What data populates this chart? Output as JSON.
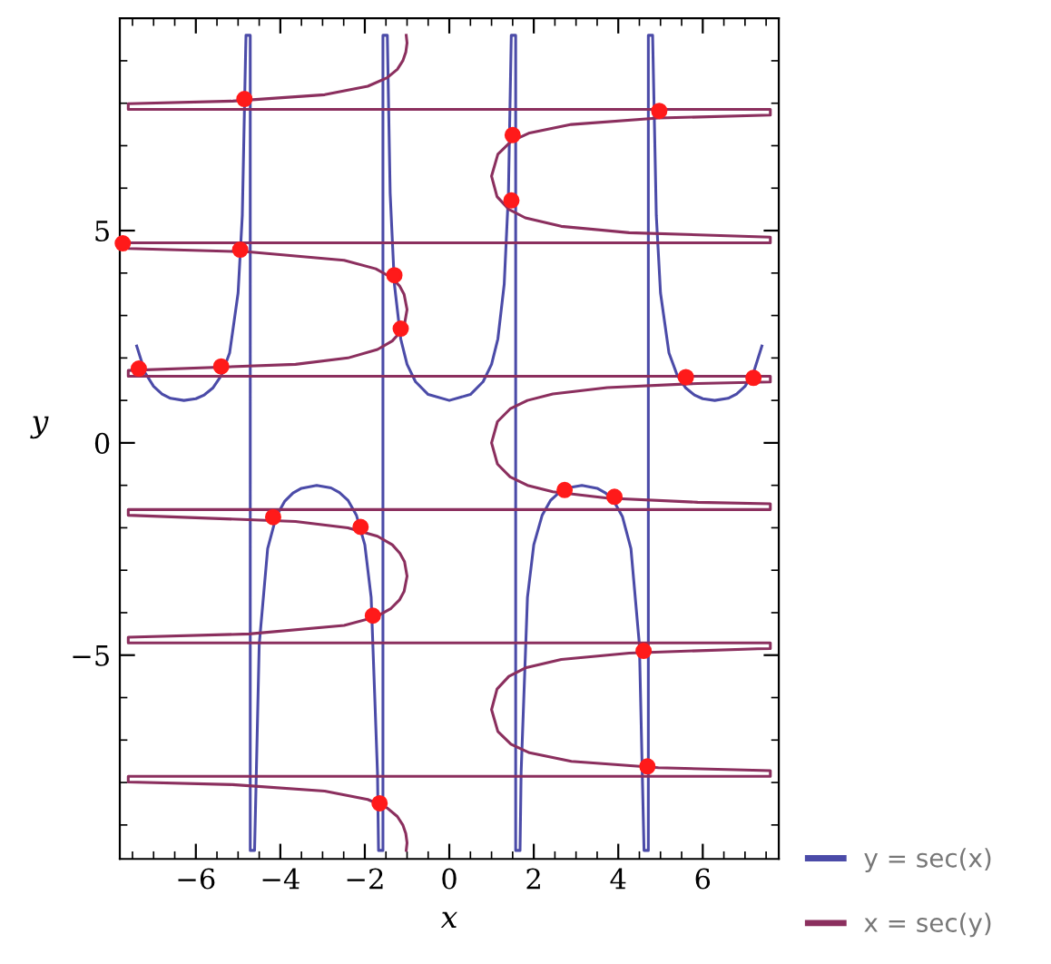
{
  "chart_data": {
    "type": "line",
    "xlabel": "x",
    "ylabel": "y",
    "xlim": [
      -7.8,
      7.8
    ],
    "ylim": [
      -9.8,
      10
    ],
    "xticks": [
      {
        "value": -6,
        "label": "−6"
      },
      {
        "value": -4,
        "label": "−4"
      },
      {
        "value": -2,
        "label": "−2"
      },
      0,
      2,
      4,
      6
    ],
    "yticks": [
      {
        "value": -5,
        "label": "−5"
      },
      0,
      5
    ],
    "grid": false,
    "legend": "bottom right",
    "marker": "none",
    "line_style": "solid",
    "series": [
      {
        "name": "y = sec(x)",
        "color": "#4b4ba8",
        "x": [
          -7.4,
          -7.2,
          -7.0,
          -6.8,
          -6.6,
          -6.283,
          -6.0,
          -5.8,
          -5.6,
          -5.4,
          -5.2,
          -5.0,
          -4.9,
          -4.82,
          -4.813,
          -4.712,
          -4.712,
          -4.61,
          -4.5,
          -4.3,
          -4.1,
          -3.9,
          -3.7,
          -3.5,
          -3.14,
          -2.8,
          -2.6,
          -2.4,
          -2.2,
          -2.0,
          -1.85,
          -1.7,
          -1.675,
          -1.571,
          -1.571,
          -1.467,
          -1.4,
          -1.3,
          -1.15,
          -1.0,
          -0.8,
          -0.5,
          0,
          0.5,
          0.8,
          1.0,
          1.15,
          1.3,
          1.4,
          1.467,
          1.571,
          1.571,
          1.675,
          1.7,
          1.85,
          2.0,
          2.2,
          2.4,
          2.6,
          2.8,
          3.14,
          3.5,
          3.7,
          3.9,
          4.1,
          4.3,
          4.5,
          4.61,
          4.712,
          4.712,
          4.813,
          4.9,
          5.0,
          5.2,
          5.4,
          5.6,
          5.8,
          6.0,
          6.283,
          6.6,
          6.8,
          7.0,
          7.2,
          7.4
        ],
        "values": [
          2.28,
          1.65,
          1.33,
          1.15,
          1.05,
          1.0,
          1.04,
          1.13,
          1.29,
          1.58,
          2.12,
          3.53,
          5.36,
          9.3,
          9.6,
          9.6,
          -9.6,
          -9.6,
          -4.75,
          -2.49,
          -1.74,
          -1.38,
          -1.18,
          -1.07,
          -1,
          -1.06,
          -1.17,
          -1.35,
          -1.7,
          -2.4,
          -3.64,
          -7.77,
          -9.6,
          -9.6,
          9.6,
          9.6,
          5.88,
          3.74,
          2.45,
          1.85,
          1.44,
          1.14,
          1,
          1.14,
          1.44,
          1.85,
          2.45,
          3.74,
          5.88,
          9.6,
          9.6,
          -9.6,
          -9.6,
          -7.77,
          -3.64,
          -2.4,
          -1.7,
          -1.35,
          -1.17,
          -1.06,
          -1,
          -1.07,
          -1.18,
          -1.38,
          -1.74,
          -2.49,
          -4.75,
          -9.6,
          -9.6,
          9.6,
          9.6,
          5.36,
          3.53,
          2.12,
          1.58,
          1.29,
          1.13,
          1.04,
          1.0,
          1.05,
          1.15,
          1.33,
          1.65,
          2.28
        ]
      },
      {
        "name": "x = sec(y)",
        "color": "#8b2f5e",
        "x": [
          -1.02,
          -1,
          -1.03,
          -1.1,
          -1.23,
          -1.47,
          -1.93,
          -2.95,
          -5.13,
          -7.6,
          -7.6,
          7.6,
          7.6,
          4.95,
          2.89,
          1.9,
          1.46,
          1.15,
          1,
          1.13,
          1.41,
          1.8,
          2.65,
          4.26,
          7.3,
          7.6,
          7.6,
          -7.6,
          -7.6,
          -4.74,
          -2.49,
          -1.74,
          -1.38,
          -1.18,
          -1.07,
          -1,
          -1.06,
          -1.17,
          -1.35,
          -1.7,
          -2.4,
          -3.64,
          -7.6,
          -7.6,
          7.6,
          7.6,
          5.88,
          3.74,
          2.45,
          1.85,
          1.44,
          1.14,
          1,
          1.14,
          1.44,
          1.85,
          2.45,
          3.74,
          5.88,
          7.6,
          7.6,
          -7.6,
          -7.6,
          -3.64,
          -2.4,
          -1.7,
          -1.35,
          -1.17,
          -1.06,
          -1,
          -1.07,
          -1.18,
          -1.38,
          -1.74,
          -2.49,
          -4.74,
          -7.6,
          -7.6,
          7.6,
          7.6,
          4.26,
          2.65,
          1.8,
          1.41,
          1.13,
          1,
          1.15,
          1.46,
          1.9,
          2.89,
          4.95,
          7.6,
          7.6,
          -7.6,
          -7.6,
          -5.13,
          -2.95,
          -1.93,
          -1.47,
          -1.23,
          -1.1,
          -1.03,
          -1,
          -1.02
        ],
        "values": [
          -9.6,
          -9.42,
          -9.2,
          -9.0,
          -8.8,
          -8.6,
          -8.4,
          -8.2,
          -8.05,
          -7.99,
          -7.854,
          -7.854,
          -7.72,
          -7.65,
          -7.5,
          -7.3,
          -7.1,
          -6.8,
          -6.283,
          -5.8,
          -5.5,
          -5.3,
          -5.1,
          -4.95,
          -4.85,
          -4.846,
          -4.712,
          -4.712,
          -4.578,
          -4.5,
          -4.3,
          -4.1,
          -3.9,
          -3.7,
          -3.5,
          -3.14,
          -2.8,
          -2.6,
          -2.4,
          -2.2,
          -2.0,
          -1.85,
          -1.705,
          -1.571,
          -1.571,
          -1.437,
          -1.4,
          -1.3,
          -1.15,
          -1.0,
          -0.8,
          -0.5,
          0,
          0.5,
          0.8,
          1.0,
          1.15,
          1.3,
          1.4,
          1.437,
          1.571,
          1.571,
          1.705,
          1.85,
          2.0,
          2.2,
          2.4,
          2.6,
          2.8,
          3.14,
          3.5,
          3.7,
          3.9,
          4.1,
          4.3,
          4.5,
          4.578,
          4.712,
          4.712,
          4.846,
          4.95,
          5.1,
          5.3,
          5.5,
          5.8,
          6.283,
          6.8,
          7.1,
          7.3,
          7.5,
          7.65,
          7.72,
          7.854,
          7.854,
          7.99,
          8.05,
          8.2,
          8.4,
          8.6,
          8.8,
          9.0,
          9.2,
          9.42,
          9.6
        ]
      },
      {
        "color": "#ff1a1a",
        "type": "scatter",
        "marker": "circle",
        "x": [
          -4.85,
          -4.95,
          -5.4,
          -7.35,
          -7.73,
          -1.3,
          -1.15,
          1.5,
          1.47,
          4.97,
          5.6,
          7.2,
          -4.17,
          -2.1,
          -1.81,
          -1.65,
          2.73,
          3.91,
          4.6,
          4.69
        ],
        "values": [
          8.1,
          4.55,
          1.8,
          1.75,
          4.7,
          3.95,
          2.69,
          7.25,
          5.71,
          7.82,
          1.55,
          1.53,
          -1.75,
          -1.98,
          -4.07,
          -8.49,
          -1.11,
          -1.27,
          -4.9,
          -7.62
        ]
      }
    ]
  }
}
